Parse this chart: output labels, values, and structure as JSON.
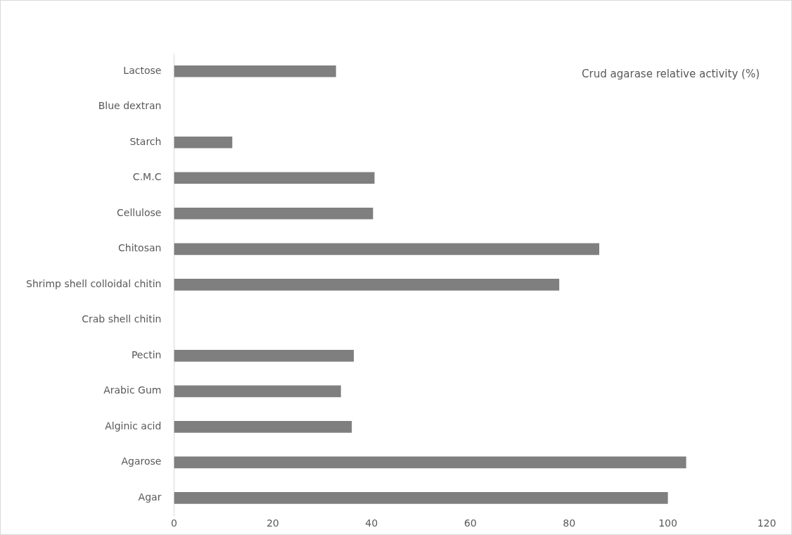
{
  "chart_data": {
    "type": "bar",
    "orientation": "horizontal",
    "categories": [
      "Lactose",
      "Blue dextran",
      "Starch",
      "C.M.C",
      "Cellulose",
      "Chitosan",
      "Shrimp shell colloidal chitin",
      "Crab shell chitin",
      "Pectin",
      "Arabic Gum",
      "Alginic acid",
      "Agarose",
      "Agar"
    ],
    "series": [
      {
        "name": "Crud agarase relative activity (%)",
        "color": "#7f7f7f",
        "values": [
          32.8,
          0,
          11.8,
          40.6,
          40.3,
          86.1,
          78.0,
          0,
          36.4,
          33.8,
          36.0,
          103.7,
          100
        ]
      }
    ],
    "xlim": [
      0,
      120
    ],
    "xticks": [
      0,
      20,
      40,
      60,
      80,
      100,
      120
    ],
    "grid": false,
    "legend": "top right"
  }
}
